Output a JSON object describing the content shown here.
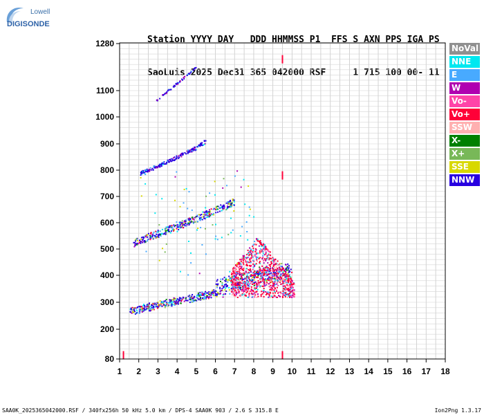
{
  "logo": {
    "line1": "Lowell",
    "line2": "DIGISONDE",
    "color1": "#3a6fa8",
    "color2": "#2f63a8"
  },
  "header": {
    "labels": "Station YYYY DAY   DDD HHMMSS P1  FFS S AXN PPS IGA PS",
    "values": "SaoLuis 2025 Dec31 365 042000 RSF     1 715 100 00- 11"
  },
  "legend": [
    {
      "label": "NoVal",
      "color": "#909090"
    },
    {
      "label": "NNE",
      "color": "#00e8f0"
    },
    {
      "label": "E",
      "color": "#48aaff"
    },
    {
      "label": "W",
      "color": "#b000b0"
    },
    {
      "label": "Vo-",
      "color": "#ff44a8"
    },
    {
      "label": "Vo+",
      "color": "#ff0038"
    },
    {
      "label": "SSW",
      "color": "#ffb0b0"
    },
    {
      "label": "X-",
      "color": "#008000"
    },
    {
      "label": "X+",
      "color": "#78b858"
    },
    {
      "label": "SSE",
      "color": "#d8d800"
    },
    {
      "label": "NNW",
      "color": "#2800e0"
    }
  ],
  "footer": {
    "left": "SAA0K_2025365042000.RSF / 340fx256h 50 kHz 5.0 km / DPS-4 SAA0K 903 / 2.6 S 315.8 E",
    "right": "Ion2Png 1.3.17"
  },
  "chart_data": {
    "type": "scatter",
    "x_ticks": [
      1,
      2,
      3,
      4,
      5,
      6,
      7,
      8,
      9,
      10,
      11,
      12,
      13,
      14,
      15,
      16,
      17,
      18
    ],
    "y_ticks": [
      80,
      200,
      300,
      400,
      500,
      600,
      700,
      800,
      900,
      1000,
      1100,
      1280
    ],
    "xlim": [
      1,
      18
    ],
    "ylim": [
      80,
      1280
    ],
    "grid": true,
    "traces": [
      {
        "name": "E",
        "x": [
          1.5,
          2.0,
          2.5,
          3.0,
          3.5,
          4.0,
          4.5,
          5.0,
          5.5,
          6.0,
          6.5,
          7.0,
          7.5,
          8.0,
          8.5,
          9.0,
          9.5,
          10.0,
          10.5
        ],
        "y": [
          258,
          268,
          275,
          283,
          290,
          298,
          305,
          312,
          320,
          330,
          340,
          352,
          360,
          370,
          380,
          390,
          395,
          385,
          365
        ]
      },
      {
        "name": "X-",
        "x": [
          1.7,
          2.5,
          3.5,
          4.5,
          5.5,
          6.0,
          6.5,
          7.0
        ],
        "y": [
          515,
          540,
          565,
          595,
          625,
          640,
          655,
          675
        ]
      },
      {
        "name": "NNW",
        "x": [
          2.0,
          3.0,
          4.0,
          5.0,
          5.5
        ],
        "y": [
          785,
          815,
          850,
          885,
          910
        ]
      },
      {
        "name": "W",
        "x": [
          2.9,
          3.5,
          4.0,
          4.5,
          5.0
        ],
        "y": [
          1065,
          1100,
          1130,
          1160,
          1195
        ]
      },
      {
        "name": "Vo+",
        "x": [
          6.5,
          7.0,
          7.5,
          8.0,
          8.5,
          9.0,
          9.5,
          10.0
        ],
        "y": [
          380,
          430,
          500,
          560,
          500,
          460,
          420,
          390
        ]
      }
    ],
    "markers": [
      {
        "x": 9.5,
        "y": 1220
      },
      {
        "x": 9.5,
        "y": 780
      },
      {
        "x": 9.5,
        "y": 95
      },
      {
        "x": 1.2,
        "y": 95
      }
    ]
  }
}
